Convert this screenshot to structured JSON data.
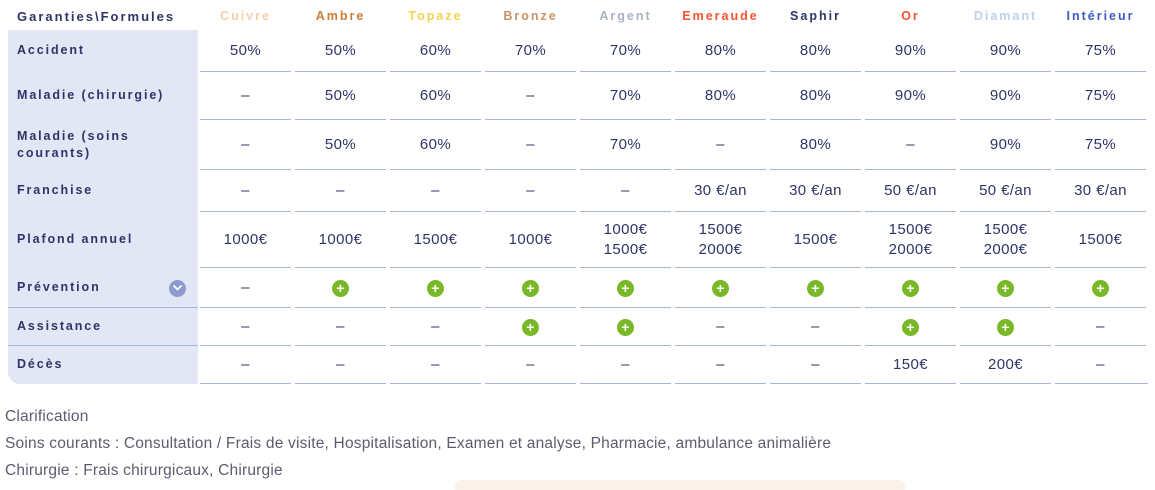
{
  "colors": {
    "navy_text": "#2e3566",
    "label_column_bg": "#e2e6f5",
    "separator_line": "#a6b5da",
    "plus_green": "#79b928",
    "chevron_circle_blue": "#8b9bce",
    "footer_text": "#5e5b6e"
  },
  "table": {
    "corner_label": "Garanties\\Formules",
    "columns": [
      {
        "label": "Cuivre",
        "color": "#f6cfa6"
      },
      {
        "label": "Ambre",
        "color": "#cd7d35"
      },
      {
        "label": "Topaze",
        "color": "#f6d24e"
      },
      {
        "label": "Bronze",
        "color": "#c99568"
      },
      {
        "label": "Argent",
        "color": "#a7b2c3"
      },
      {
        "label": "Emeraude",
        "color": "#f5532e"
      },
      {
        "label": "Saphir",
        "color": "#2e3566"
      },
      {
        "label": "Or",
        "color": "#f5532e"
      },
      {
        "label": "Diamant",
        "color": "#bdd2ea"
      },
      {
        "label": "Intérieur",
        "color": "#3c5cc5"
      }
    ],
    "rows": [
      {
        "label": "Accident",
        "values": [
          "50%",
          "50%",
          "60%",
          "70%",
          "70%",
          "80%",
          "80%",
          "90%",
          "90%",
          "75%"
        ]
      },
      {
        "label": "Maladie (chirurgie)",
        "values": [
          "–",
          "50%",
          "60%",
          "–",
          "70%",
          "80%",
          "80%",
          "90%",
          "90%",
          "75%"
        ]
      },
      {
        "label": "Maladie (soins courants)",
        "values": [
          "–",
          "50%",
          "60%",
          "–",
          "70%",
          "–",
          "80%",
          "–",
          "90%",
          "75%"
        ]
      },
      {
        "label": "Franchise",
        "values": [
          "–",
          "–",
          "–",
          "–",
          "–",
          "30 €/an",
          "30 €/an",
          "50 €/an",
          "50 €/an",
          "30 €/an"
        ]
      },
      {
        "label": "Plafond annuel",
        "values": [
          "1000€",
          "1000€",
          "1500€",
          "1000€",
          [
            "1000€",
            "1500€"
          ],
          [
            "1500€",
            "2000€"
          ],
          "1500€",
          [
            "1500€",
            "2000€"
          ],
          [
            "1500€",
            "2000€"
          ],
          "1500€"
        ]
      },
      {
        "label": "Prévention",
        "has_chevron": true,
        "values": [
          "–",
          "plus-icon",
          "plus-icon",
          "plus-icon",
          "plus-icon",
          "plus-icon",
          "plus-icon",
          "plus-icon",
          "plus-icon",
          "plus-icon"
        ]
      },
      {
        "label": "Assistance",
        "values": [
          "–",
          "–",
          "–",
          "plus-icon",
          "plus-icon",
          "–",
          "–",
          "plus-icon",
          "plus-icon",
          "–"
        ]
      },
      {
        "label": "Décès",
        "values": [
          "–",
          "–",
          "–",
          "–",
          "–",
          "–",
          "–",
          "150€",
          "200€",
          "–"
        ]
      }
    ]
  },
  "footer": {
    "line1": "Clarification",
    "line2": "Soins courants : Consultation / Frais de visite, Hospitalisation, Examen et analyse, Pharmacie, ambulance animalière",
    "line3": "Chirurgie : Frais chirurgicaux, Chirurgie"
  },
  "icons": {
    "plus_icon_glyph": "+",
    "chevron_icon": "chevron-down"
  }
}
